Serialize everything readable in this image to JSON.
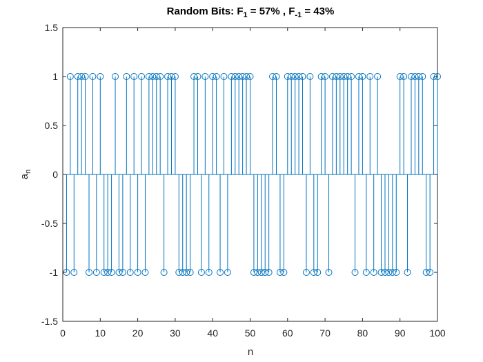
{
  "chart_data": {
    "type": "stem",
    "title": {
      "prefix": "Random Bits: F",
      "sub1": "1",
      "mid": " = 57% , F",
      "sub2": "-1",
      "suffix": " = 43%"
    },
    "xlabel": "n",
    "ylabel": {
      "base": "a",
      "sub": "n"
    },
    "xlim": [
      0,
      100
    ],
    "ylim": [
      -1.5,
      1.5
    ],
    "xticks": [
      0,
      10,
      20,
      30,
      40,
      50,
      60,
      70,
      80,
      90,
      100
    ],
    "xtick_labels": [
      "0",
      "10",
      "20",
      "30",
      "40",
      "50",
      "60",
      "70",
      "80",
      "90",
      "100"
    ],
    "yticks": [
      1.5,
      1,
      0.5,
      0,
      -0.5,
      -1,
      -1.5
    ],
    "ytick_labels": [
      "1.5",
      "1",
      "0.5",
      "0",
      "-0.5",
      "-1",
      "-1.5"
    ],
    "grid": false,
    "color": "#0072BD",
    "marker": "open-circle",
    "x": [
      1,
      2,
      3,
      4,
      5,
      6,
      7,
      8,
      9,
      10,
      11,
      12,
      13,
      14,
      15,
      16,
      17,
      18,
      19,
      20,
      21,
      22,
      23,
      24,
      25,
      26,
      27,
      28,
      29,
      30,
      31,
      32,
      33,
      34,
      35,
      36,
      37,
      38,
      39,
      40,
      41,
      42,
      43,
      44,
      45,
      46,
      47,
      48,
      49,
      50,
      51,
      52,
      53,
      54,
      55,
      56,
      57,
      58,
      59,
      60,
      61,
      62,
      63,
      64,
      65,
      66,
      67,
      68,
      69,
      70,
      71,
      72,
      73,
      74,
      75,
      76,
      77,
      78,
      79,
      80,
      81,
      82,
      83,
      84,
      85,
      86,
      87,
      88,
      89,
      90,
      91,
      92,
      93,
      94,
      95,
      96,
      97,
      98,
      99,
      100
    ],
    "y": [
      -1,
      1,
      -1,
      1,
      1,
      1,
      -1,
      1,
      -1,
      1,
      -1,
      -1,
      -1,
      1,
      -1,
      -1,
      1,
      -1,
      1,
      -1,
      1,
      -1,
      1,
      1,
      1,
      1,
      -1,
      1,
      1,
      1,
      -1,
      -1,
      -1,
      -1,
      1,
      1,
      -1,
      1,
      -1,
      1,
      1,
      -1,
      1,
      -1,
      1,
      1,
      1,
      1,
      1,
      1,
      -1,
      -1,
      -1,
      -1,
      -1,
      1,
      1,
      -1,
      -1,
      1,
      1,
      1,
      1,
      1,
      -1,
      1,
      -1,
      -1,
      1,
      1,
      -1,
      1,
      1,
      1,
      1,
      1,
      1,
      -1,
      1,
      1,
      -1,
      1,
      -1,
      1,
      -1,
      -1,
      -1,
      -1,
      -1,
      1,
      1,
      -1,
      1,
      1,
      1,
      1,
      -1,
      -1,
      1,
      1
    ]
  }
}
